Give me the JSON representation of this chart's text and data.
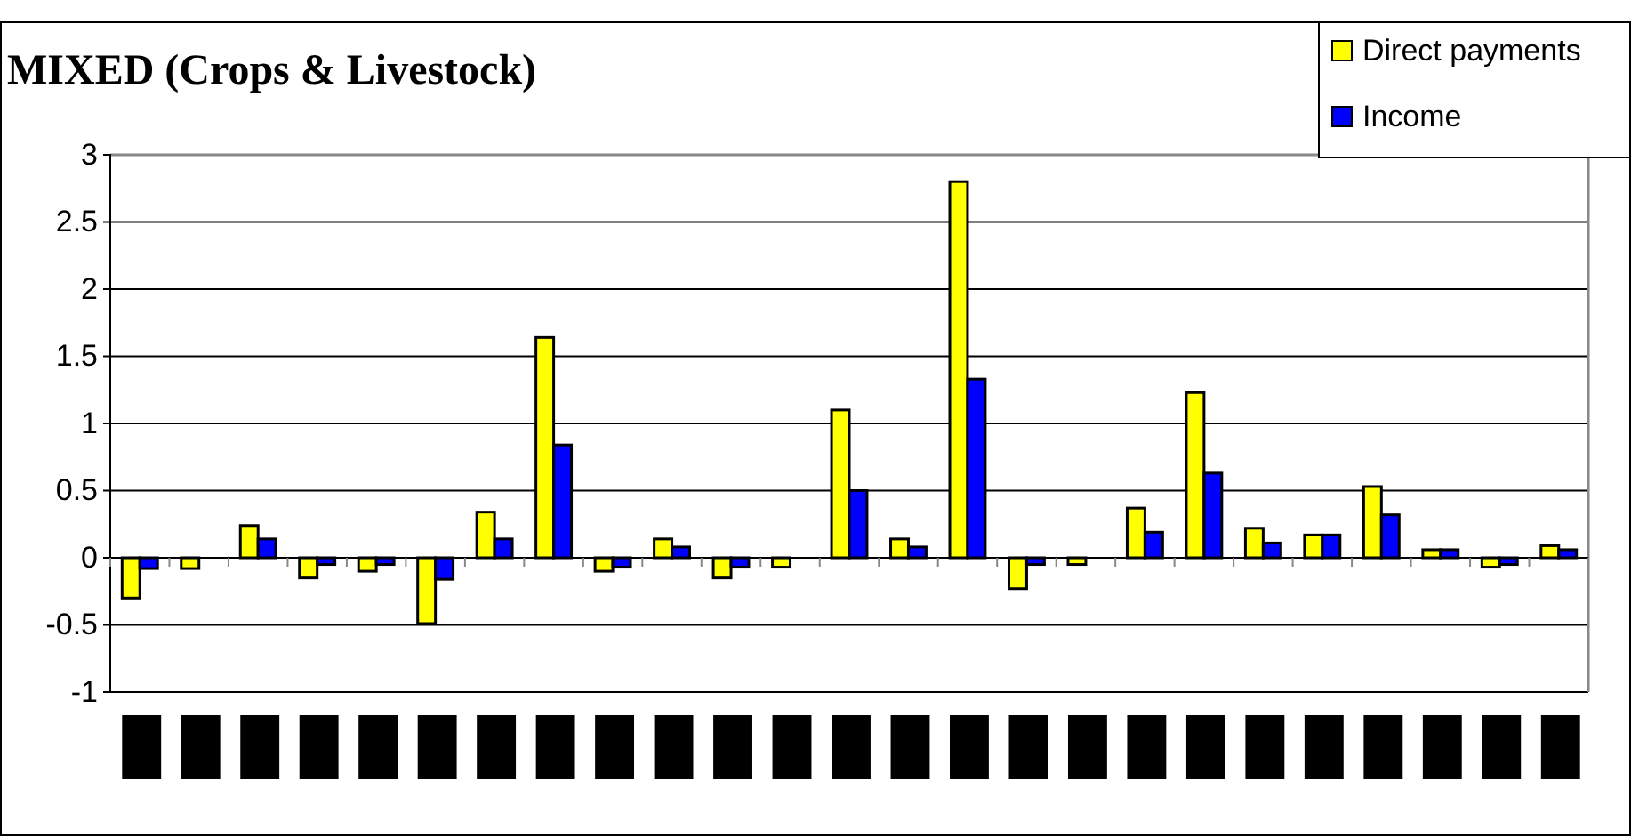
{
  "chart_data": {
    "type": "bar",
    "title": "MIXED (Crops & Livestock)",
    "categories": [
      null,
      null,
      null,
      null,
      null,
      null,
      null,
      null,
      null,
      null,
      null,
      null,
      null,
      null,
      null,
      null,
      null,
      null,
      null,
      null,
      null,
      null,
      null,
      null,
      null
    ],
    "series": [
      {
        "name": "Direct payments",
        "color": "#ffff00",
        "values": [
          -0.3,
          -0.08,
          0.24,
          -0.15,
          -0.1,
          -0.49,
          0.34,
          1.64,
          -0.1,
          0.14,
          -0.15,
          -0.07,
          1.1,
          0.14,
          2.8,
          -0.23,
          -0.05,
          0.37,
          1.23,
          0.22,
          0.17,
          0.53,
          0.06,
          -0.07,
          0.09
        ]
      },
      {
        "name": "Income",
        "color": "#0000ff",
        "values": [
          -0.08,
          0,
          0.14,
          -0.05,
          -0.05,
          -0.16,
          0.14,
          0.84,
          -0.07,
          0.08,
          -0.07,
          0,
          0.5,
          0.08,
          1.33,
          -0.05,
          0,
          0.19,
          0.63,
          0.11,
          0.17,
          0.32,
          0.06,
          -0.05,
          0.06
        ]
      }
    ],
    "ylim": [
      -1,
      3
    ],
    "yticks": [
      -1,
      -0.5,
      0,
      0.5,
      1,
      1.5,
      2,
      2.5,
      3
    ],
    "grid": "y",
    "legend": "top right"
  }
}
